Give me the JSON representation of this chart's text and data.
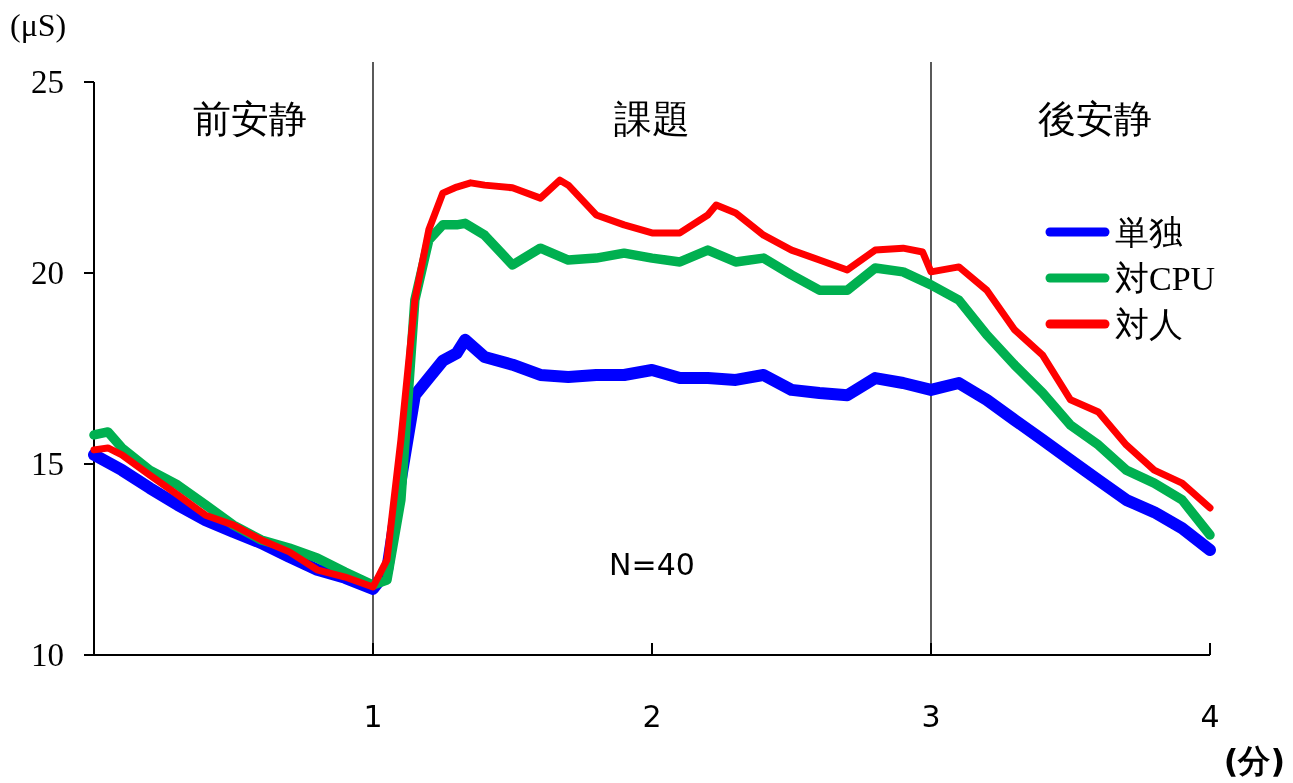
{
  "chart_data": {
    "type": "line",
    "xlabel": "(分)",
    "ylabel": "(μS)",
    "xlim": [
      0,
      4
    ],
    "xticks": [
      1,
      2,
      3,
      4
    ],
    "ylim": [
      10,
      25
    ],
    "yticks": [
      10,
      15,
      20,
      25
    ],
    "grid": false,
    "legend": "right",
    "marker": "none",
    "line_style": "solid",
    "ref_lines": [
      {
        "axis": "x",
        "value": 1,
        "color": "#000000"
      },
      {
        "axis": "x",
        "value": 3,
        "color": "#000000"
      }
    ],
    "annotations": [
      "前安静",
      "課題",
      "後安静",
      "N=40"
    ],
    "series": [
      {
        "name": "単独",
        "color": "#0000ff",
        "x": [
          0,
          0.1,
          0.2,
          0.3,
          0.4,
          0.5,
          0.6,
          0.7,
          0.8,
          0.9,
          1.0,
          1.05,
          1.1,
          1.15,
          1.2,
          1.25,
          1.3,
          1.33,
          1.4,
          1.5,
          1.6,
          1.7,
          1.8,
          1.9,
          2.0,
          2.1,
          2.2,
          2.3,
          2.4,
          2.5,
          2.6,
          2.7,
          2.8,
          2.9,
          3.0,
          3.1,
          3.2,
          3.3,
          3.4,
          3.5,
          3.6,
          3.7,
          3.8,
          3.9,
          4.0
        ],
        "values": [
          15.24,
          14.84,
          14.37,
          13.93,
          13.53,
          13.22,
          12.93,
          12.57,
          12.23,
          12.02,
          11.73,
          12.2,
          14.6,
          16.8,
          17.25,
          17.7,
          17.9,
          18.25,
          17.8,
          17.6,
          17.33,
          17.28,
          17.33,
          17.33,
          17.46,
          17.25,
          17.25,
          17.2,
          17.33,
          16.94,
          16.86,
          16.8,
          17.25,
          17.12,
          16.94,
          17.12,
          16.68,
          16.15,
          15.63,
          15.1,
          14.58,
          14.06,
          13.74,
          13.32,
          12.75
        ]
      },
      {
        "name": "対CPU",
        "color": "#00b050",
        "x": [
          0,
          0.05,
          0.1,
          0.2,
          0.3,
          0.4,
          0.5,
          0.6,
          0.7,
          0.8,
          0.9,
          1.0,
          1.05,
          1.1,
          1.15,
          1.2,
          1.25,
          1.3,
          1.33,
          1.4,
          1.5,
          1.6,
          1.7,
          1.8,
          1.9,
          2.0,
          2.1,
          2.2,
          2.3,
          2.4,
          2.5,
          2.6,
          2.7,
          2.8,
          2.9,
          3.0,
          3.1,
          3.2,
          3.3,
          3.4,
          3.5,
          3.6,
          3.7,
          3.8,
          3.9,
          4.0
        ],
        "values": [
          15.76,
          15.84,
          15.42,
          14.84,
          14.45,
          13.93,
          13.4,
          13.01,
          12.8,
          12.54,
          12.17,
          11.83,
          11.96,
          14.06,
          19.29,
          20.86,
          21.26,
          21.26,
          21.3,
          20.99,
          20.21,
          20.65,
          20.34,
          20.39,
          20.52,
          20.39,
          20.29,
          20.6,
          20.29,
          20.39,
          19.95,
          19.55,
          19.55,
          20.13,
          20.03,
          19.69,
          19.29,
          18.38,
          17.59,
          16.86,
          16.02,
          15.5,
          14.84,
          14.5,
          14.06,
          13.14
        ]
      },
      {
        "name": "対人",
        "color": "#ff0000",
        "x": [
          0,
          0.05,
          0.1,
          0.2,
          0.3,
          0.4,
          0.5,
          0.6,
          0.7,
          0.8,
          0.9,
          1.0,
          1.05,
          1.1,
          1.15,
          1.2,
          1.25,
          1.3,
          1.35,
          1.4,
          1.5,
          1.6,
          1.67,
          1.7,
          1.8,
          1.9,
          2.0,
          2.1,
          2.2,
          2.23,
          2.3,
          2.4,
          2.5,
          2.6,
          2.7,
          2.8,
          2.9,
          2.97,
          3.0,
          3.1,
          3.2,
          3.3,
          3.4,
          3.5,
          3.6,
          3.7,
          3.8,
          3.9,
          4.0
        ],
        "values": [
          15.37,
          15.42,
          15.24,
          14.71,
          14.19,
          13.66,
          13.4,
          13.01,
          12.7,
          12.23,
          12.04,
          11.78,
          12.49,
          15.63,
          19.29,
          21.13,
          22.09,
          22.25,
          22.36,
          22.3,
          22.23,
          21.96,
          22.43,
          22.3,
          21.52,
          21.26,
          21.05,
          21.05,
          21.52,
          21.78,
          21.57,
          20.99,
          20.6,
          20.34,
          20.08,
          20.6,
          20.65,
          20.55,
          20.03,
          20.16,
          19.55,
          18.51,
          17.85,
          16.68,
          16.36,
          15.5,
          14.84,
          14.5,
          13.85
        ]
      }
    ]
  }
}
